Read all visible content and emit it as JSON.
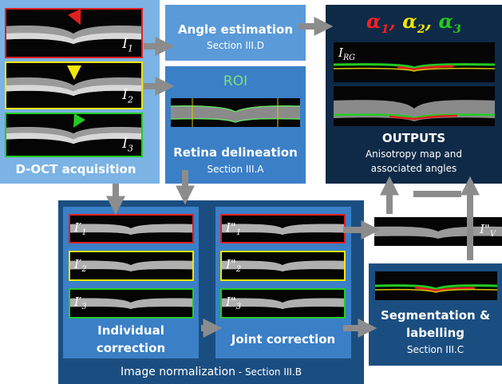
{
  "acquisition": {
    "title": "D-OCT acquisition",
    "images": [
      {
        "label": "I",
        "sub": "1",
        "frame": "#e02020",
        "marker": "#e02020"
      },
      {
        "label": "I",
        "sub": "2",
        "frame": "#f2e600",
        "marker": "#f2e600"
      },
      {
        "label": "I",
        "sub": "3",
        "frame": "#22cc22",
        "marker": "#22cc22"
      }
    ]
  },
  "angle": {
    "title": "Angle estimation",
    "section": "Section III.D"
  },
  "roi": {
    "label": "ROI",
    "title": "Retina delineation",
    "section": "Section III.A"
  },
  "outputs": {
    "alphas": [
      {
        "sym": "α",
        "sub": "1",
        "color": "#ff2020"
      },
      {
        "sym": "α",
        "sub": "2",
        "color": "#f2e600"
      },
      {
        "sym": "α",
        "sub": "3",
        "color": "#22cc22"
      }
    ],
    "irg_label": "I",
    "irg_sub": "RG",
    "title": "OUTPUTS",
    "desc_line1": "Anisotropy map and",
    "desc_line2": "associated angles"
  },
  "normalization": {
    "title": "Image normalization",
    "section": " - Section III.B",
    "individual": {
      "title_line1": "Individual",
      "title_line2": "correction",
      "images": [
        {
          "label": "I′",
          "sub": "1"
        },
        {
          "label": "I′",
          "sub": "2"
        },
        {
          "label": "I′",
          "sub": "3"
        }
      ]
    },
    "joint": {
      "title": "Joint correction",
      "images": [
        {
          "label": "I\"",
          "sub": "1"
        },
        {
          "label": "I\"",
          "sub": "2"
        },
        {
          "label": "I\"",
          "sub": "3"
        }
      ]
    }
  },
  "iv": {
    "label": "I\"",
    "sub": "V"
  },
  "segmentation": {
    "title_line1": "Segmentation &",
    "title_line2": "labelling",
    "section": "Section III.C"
  },
  "colors": {
    "panel_mid": "#3b7fc7",
    "panel_light": "#5a9ad8",
    "panel_dark": "#0e2a47",
    "panel_navy": "#1b4e80",
    "arrow": "#8c8c8c"
  }
}
